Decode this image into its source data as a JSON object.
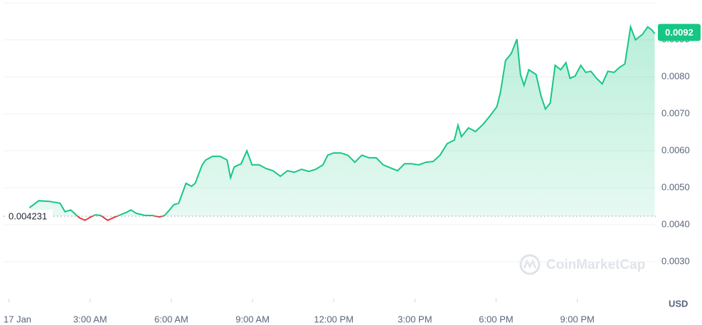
{
  "chart_data": {
    "type": "line",
    "color": "#16c784",
    "down_color": "#ea3943",
    "x": [
      0.76,
      1.1,
      1.5,
      1.89,
      2.07,
      2.28,
      2.6,
      2.81,
      3.02,
      3.2,
      3.39,
      3.65,
      3.86,
      4.12,
      4.33,
      4.51,
      4.7,
      5.04,
      5.3,
      5.56,
      5.75,
      5.91,
      6.09,
      6.27,
      6.54,
      6.75,
      6.88,
      7.14,
      7.27,
      7.53,
      7.8,
      8.06,
      8.19,
      8.32,
      8.58,
      8.79,
      8.98,
      9.24,
      9.5,
      9.76,
      10.03,
      10.29,
      10.55,
      10.81,
      11.08,
      11.34,
      11.6,
      11.78,
      11.99,
      12.26,
      12.52,
      12.78,
      13.04,
      13.31,
      13.57,
      13.83,
      14.09,
      14.36,
      14.62,
      14.88,
      15.14,
      15.41,
      15.67,
      15.93,
      16.19,
      16.46,
      16.59,
      16.72,
      16.98,
      17.24,
      17.51,
      17.77,
      18.03,
      18.16,
      18.35,
      18.56,
      18.77,
      18.9,
      19.03,
      19.21,
      19.48,
      19.66,
      19.82,
      20.0,
      20.18,
      20.39,
      20.58,
      20.73,
      20.92,
      21.13,
      21.31,
      21.5,
      21.71,
      21.92,
      22.13,
      22.36,
      22.55,
      22.76,
      22.97,
      23.15,
      23.41,
      23.6,
      23.75,
      23.86
    ],
    "values": [
      0.00446,
      0.00465,
      0.00463,
      0.00458,
      0.00435,
      0.0044,
      0.00419,
      0.00412,
      0.00421,
      0.00427,
      0.00425,
      0.00412,
      0.00419,
      0.00427,
      0.00433,
      0.0044,
      0.00431,
      0.00425,
      0.00425,
      0.00421,
      0.00425,
      0.00438,
      0.00454,
      0.00458,
      0.00512,
      0.00504,
      0.00512,
      0.00562,
      0.00575,
      0.00585,
      0.00585,
      0.00575,
      0.00527,
      0.00556,
      0.00565,
      0.006,
      0.00562,
      0.00562,
      0.00552,
      0.00546,
      0.00531,
      0.00546,
      0.00542,
      0.0055,
      0.00544,
      0.0055,
      0.00562,
      0.00588,
      0.00594,
      0.00594,
      0.00588,
      0.00569,
      0.00588,
      0.00581,
      0.00581,
      0.00562,
      0.00554,
      0.00546,
      0.00565,
      0.00565,
      0.00562,
      0.00569,
      0.00571,
      0.00588,
      0.00619,
      0.00629,
      0.00669,
      0.00638,
      0.00662,
      0.00652,
      0.00671,
      0.00694,
      0.00719,
      0.00758,
      0.00844,
      0.00863,
      0.00902,
      0.00806,
      0.00777,
      0.00819,
      0.00806,
      0.00748,
      0.00713,
      0.00729,
      0.00831,
      0.00819,
      0.00838,
      0.00796,
      0.00802,
      0.00831,
      0.00812,
      0.00815,
      0.00796,
      0.00781,
      0.00815,
      0.00812,
      0.00825,
      0.00835,
      0.00935,
      0.009,
      0.00915,
      0.00935,
      0.00927,
      0.00917
    ],
    "xlim": [
      -0.2,
      23.9
    ],
    "xticks": [
      {
        "value": 0,
        "label": "17 Jan"
      },
      {
        "value": 3,
        "label": "3:00 AM"
      },
      {
        "value": 6,
        "label": "6:00 AM"
      },
      {
        "value": 9,
        "label": "9:00 AM"
      },
      {
        "value": 12,
        "label": "12:00 PM"
      },
      {
        "value": 15,
        "label": "3:00 PM"
      },
      {
        "value": 18,
        "label": "6:00 PM"
      },
      {
        "value": 21,
        "label": "9:00 PM"
      }
    ],
    "ylim": [
      0.002,
      0.01
    ],
    "yticks": [
      {
        "value": 0.003,
        "label": "0.0030"
      },
      {
        "value": 0.004,
        "label": "0.0040"
      },
      {
        "value": 0.005,
        "label": "0.0050"
      },
      {
        "value": 0.006,
        "label": "0.0060"
      },
      {
        "value": 0.007,
        "label": "0.0070"
      },
      {
        "value": 0.008,
        "label": "0.0080"
      },
      {
        "value": 0.009,
        "label": "0.0090"
      }
    ],
    "grid": true,
    "reference_value": 0.004231,
    "current_price": 0.0092,
    "unit": "USD",
    "watermark": "CoinMarketCap"
  }
}
